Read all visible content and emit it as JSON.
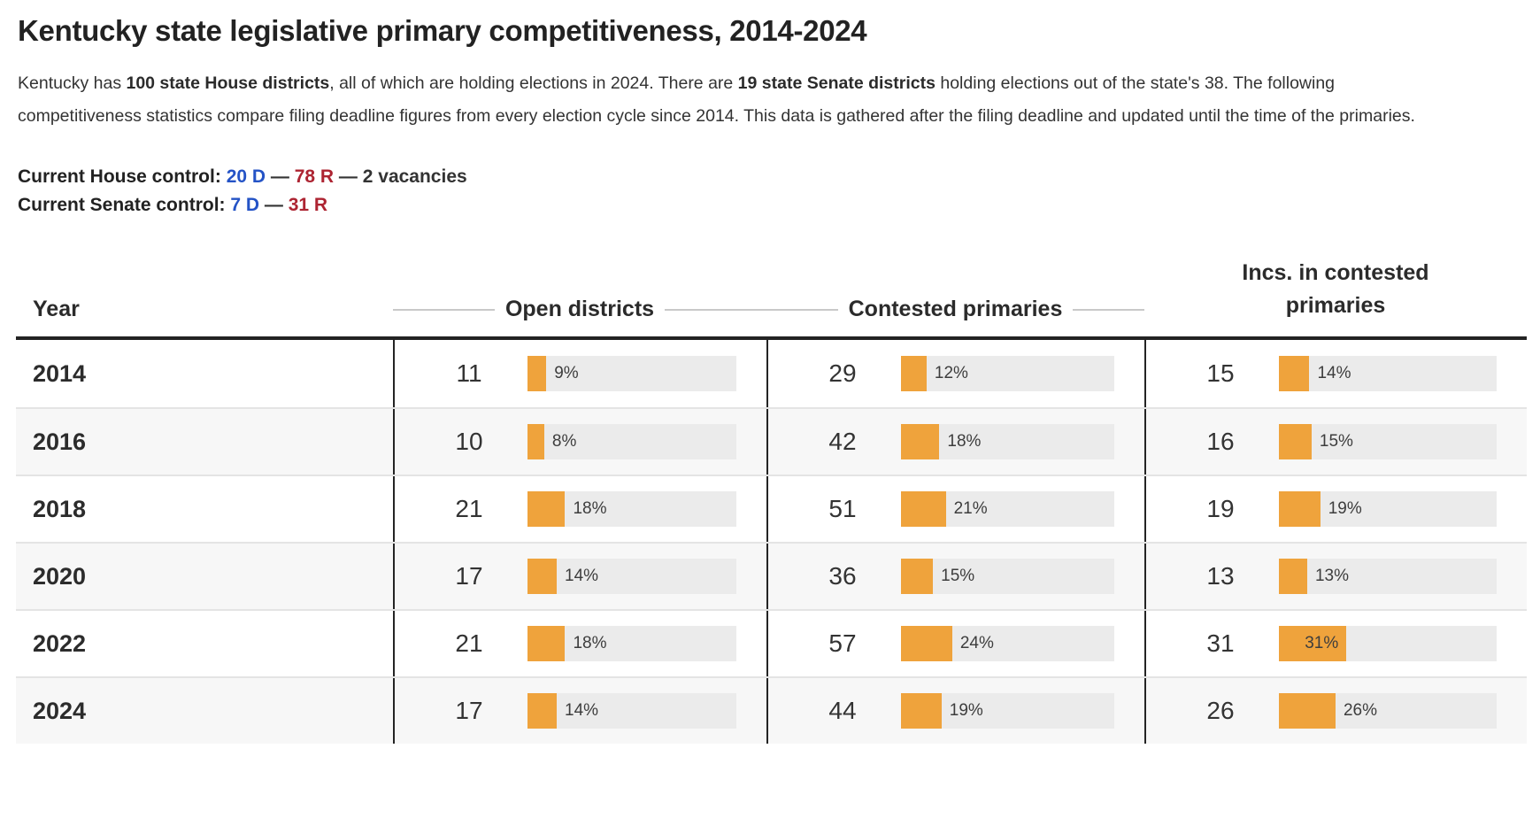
{
  "title": "Kentucky state legislative primary competitiveness, 2014-2024",
  "intro": {
    "segments": [
      {
        "text": "Kentucky has ",
        "bold": false
      },
      {
        "text": "100 state House districts",
        "bold": true
      },
      {
        "text": ", all of which are holding elections in 2024. There are ",
        "bold": false
      },
      {
        "text": "19 state Senate districts",
        "bold": true
      },
      {
        "text": " holding elections out of the state's 38. The following competitiveness statistics compare filing deadline figures from every election cycle since 2014. This data is gathered after the filing deadline and updated until the time of the primaries.",
        "bold": false
      }
    ]
  },
  "control": {
    "lines": [
      {
        "id": "house",
        "label": "Current House control:",
        "parts": [
          {
            "text": "20 D",
            "role": "dem"
          },
          {
            "text": " — ",
            "role": "plain"
          },
          {
            "text": "78 R",
            "role": "rep"
          },
          {
            "text": " — 2 vacancies",
            "role": "plain"
          }
        ]
      },
      {
        "id": "senate",
        "label": "Current Senate control:",
        "parts": [
          {
            "text": "7 D",
            "role": "dem"
          },
          {
            "text": " — ",
            "role": "plain"
          },
          {
            "text": "31 R",
            "role": "rep"
          }
        ]
      }
    ]
  },
  "colors": {
    "dem": "#2453c6",
    "rep": "#ad2432",
    "bar": "#efa33c",
    "track": "#ebebeb"
  },
  "chart_data": {
    "type": "table",
    "title": "Kentucky state legislative primary competitiveness, 2014-2024",
    "columns": [
      "Year",
      "Open districts",
      "Contested primaries",
      "Incs. in contested primaries"
    ],
    "bar_scale_note": "pct is bar width as percent of full track, labeled with % suffix",
    "pct_suffix": "%",
    "rows": [
      {
        "year": "2014",
        "open": {
          "count": 11,
          "pct": 9
        },
        "contested": {
          "count": 29,
          "pct": 12
        },
        "incs": {
          "count": 15,
          "pct": 14
        }
      },
      {
        "year": "2016",
        "open": {
          "count": 10,
          "pct": 8
        },
        "contested": {
          "count": 42,
          "pct": 18
        },
        "incs": {
          "count": 16,
          "pct": 15
        }
      },
      {
        "year": "2018",
        "open": {
          "count": 21,
          "pct": 18
        },
        "contested": {
          "count": 51,
          "pct": 21
        },
        "incs": {
          "count": 19,
          "pct": 19
        }
      },
      {
        "year": "2020",
        "open": {
          "count": 17,
          "pct": 14
        },
        "contested": {
          "count": 36,
          "pct": 15
        },
        "incs": {
          "count": 13,
          "pct": 13
        }
      },
      {
        "year": "2022",
        "open": {
          "count": 21,
          "pct": 18
        },
        "contested": {
          "count": 57,
          "pct": 24
        },
        "incs": {
          "count": 31,
          "pct": 31
        }
      },
      {
        "year": "2024",
        "open": {
          "count": 17,
          "pct": 14
        },
        "contested": {
          "count": 44,
          "pct": 19
        },
        "incs": {
          "count": 26,
          "pct": 26
        }
      }
    ]
  }
}
